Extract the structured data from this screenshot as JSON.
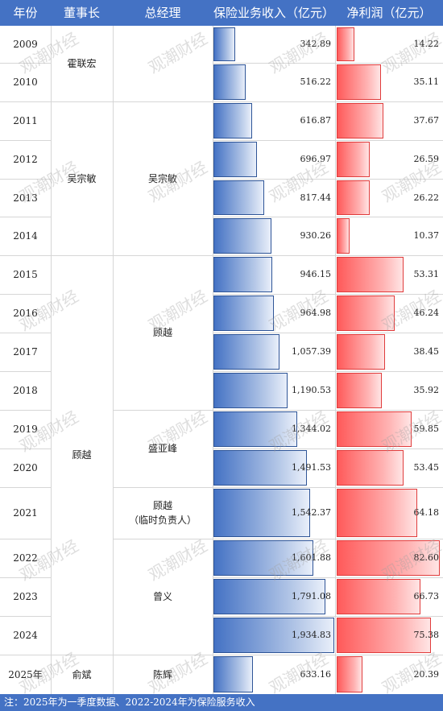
{
  "headers": {
    "year": "年份",
    "chairman": "董事长",
    "gm": "总经理",
    "revenue": "保险业务收入（亿元）",
    "net_profit": "净利润（亿元）"
  },
  "chairman_groups": [
    {
      "name": "霍联宏",
      "from": 0,
      "to": 1
    },
    {
      "name": "吴宗敏",
      "from": 2,
      "to": 5
    },
    {
      "name": "顾越",
      "from": 6,
      "to": 15
    },
    {
      "name": "俞斌",
      "from": 16,
      "to": 16
    }
  ],
  "gm_groups": [
    {
      "name": "",
      "from": 0,
      "to": 1
    },
    {
      "name": "吴宗敏",
      "from": 2,
      "to": 5
    },
    {
      "name": "顾越",
      "from": 6,
      "to": 9
    },
    {
      "name": "盛亚峰",
      "from": 10,
      "to": 11
    },
    {
      "name": "顾越\n（临时负责人）",
      "from": 12,
      "to": 12
    },
    {
      "name": "曾义",
      "from": 13,
      "to": 15
    },
    {
      "name": "陈辉",
      "from": 16,
      "to": 16
    }
  ],
  "footer_note": "注：2025年为一季度数据、2022-2024年为保险服务收入",
  "watermark": "观潮财经",
  "colors": {
    "header": "#4472c4",
    "revenue_bar": "#4472c4",
    "profit_bar": "#ff5a5a"
  },
  "chart_data": {
    "type": "bar",
    "categories": [
      "2009",
      "2010",
      "2011",
      "2012",
      "2013",
      "2014",
      "2015",
      "2016",
      "2017",
      "2018",
      "2019",
      "2020",
      "2021",
      "2022",
      "2023",
      "2024",
      "2025年"
    ],
    "series": [
      {
        "name": "保险业务收入（亿元）",
        "values": [
          342.89,
          516.22,
          616.87,
          696.97,
          817.44,
          930.26,
          946.15,
          964.98,
          1057.39,
          1190.53,
          1344.02,
          1491.53,
          1542.37,
          1601.88,
          1791.08,
          1934.83,
          633.16
        ],
        "labels": [
          "342.89",
          "516.22",
          "616.87",
          "696.97",
          "817.44",
          "930.26",
          "946.15",
          "964.98",
          "1,057.39",
          "1,190.53",
          "1,344.02",
          "1,491.53",
          "1,542.37",
          "1,601.88",
          "1,791.08",
          "1,934.83",
          "633.16"
        ]
      },
      {
        "name": "净利润（亿元）",
        "values": [
          14.22,
          35.11,
          37.67,
          26.59,
          26.22,
          10.37,
          53.31,
          46.24,
          38.45,
          35.92,
          59.85,
          53.45,
          64.18,
          82.6,
          66.73,
          75.38,
          20.39
        ],
        "labels": [
          "14.22",
          "35.11",
          "37.67",
          "26.59",
          "26.22",
          "10.37",
          "53.31",
          "46.24",
          "38.45",
          "35.92",
          "59.85",
          "53.45",
          "64.18",
          "82.60",
          "66.73",
          "75.38",
          "20.39"
        ]
      }
    ]
  }
}
